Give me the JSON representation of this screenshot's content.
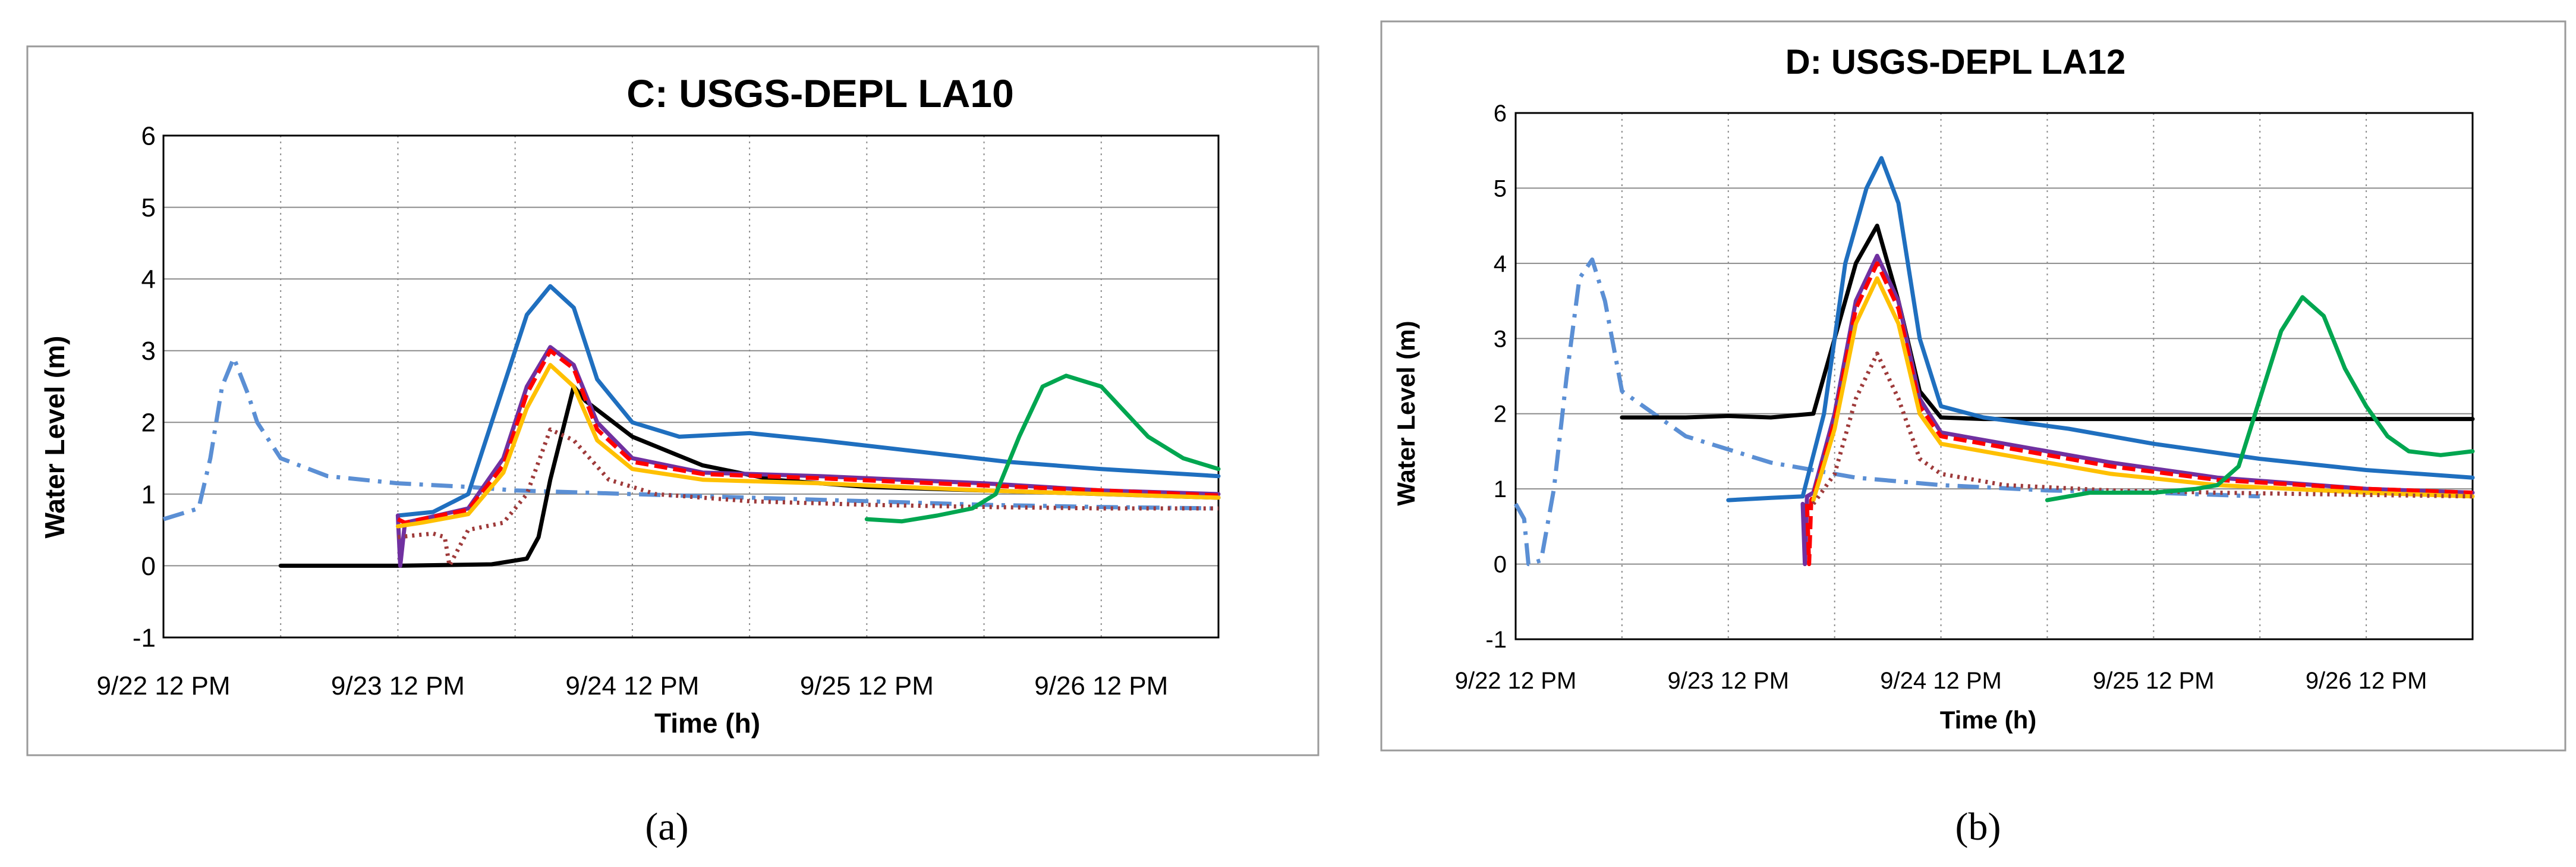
{
  "chart_data": [
    {
      "type": "line",
      "title": "C: USGS-DEPL LA10",
      "xlabel": "Time (h)",
      "ylabel": "Water Level (m)",
      "panel_label": "(a)",
      "xlim": [
        0,
        4.5
      ],
      "ylim": [
        -1,
        6
      ],
      "x_unit": "days since 9/22 12 PM",
      "xtick_labels": [
        "9/22 12 PM",
        "9/23 12 PM",
        "9/24 12 PM",
        "9/25 12 PM",
        "9/26 12 PM"
      ],
      "xtick_values": [
        0,
        1,
        2,
        3,
        4
      ],
      "ytick_values": [
        -1,
        0,
        1,
        2,
        3,
        4,
        5,
        6
      ],
      "series": [
        {
          "name": "light-blue-dashdot",
          "color": "#5b8fd4",
          "dash": "36 14 6 14",
          "x": [
            0.0,
            0.15,
            0.2,
            0.25,
            0.3,
            0.36,
            0.4,
            0.5,
            0.7,
            1.0,
            1.3,
            1.5,
            2.0,
            2.5,
            3.0,
            3.5,
            4.0,
            4.5
          ],
          "y": [
            0.65,
            0.8,
            1.5,
            2.5,
            2.9,
            2.4,
            2.0,
            1.5,
            1.25,
            1.15,
            1.1,
            1.05,
            1.0,
            0.95,
            0.9,
            0.85,
            0.82,
            0.8
          ]
        },
        {
          "name": "black",
          "color": "#000000",
          "dash": "",
          "x": [
            0.5,
            1.0,
            1.4,
            1.55,
            1.6,
            1.65,
            1.75,
            1.8,
            2.0,
            2.3,
            2.6,
            3.0,
            3.5,
            4.0,
            4.5
          ],
          "y": [
            0.0,
            0.0,
            0.02,
            0.1,
            0.4,
            1.2,
            2.5,
            2.3,
            1.8,
            1.4,
            1.2,
            1.1,
            1.05,
            1.0,
            0.95
          ]
        },
        {
          "name": "dark-blue",
          "color": "#1f6fbf",
          "dash": "",
          "x": [
            1.0,
            1.15,
            1.3,
            1.45,
            1.55,
            1.65,
            1.75,
            1.85,
            2.0,
            2.2,
            2.5,
            2.8,
            3.2,
            3.6,
            4.0,
            4.5
          ],
          "y": [
            0.7,
            0.75,
            1.0,
            2.5,
            3.5,
            3.9,
            3.6,
            2.6,
            2.0,
            1.8,
            1.85,
            1.75,
            1.6,
            1.45,
            1.35,
            1.25
          ]
        },
        {
          "name": "purple",
          "color": "#7030a0",
          "dash": "",
          "x": [
            1.0,
            1.01,
            1.03,
            1.1,
            1.3,
            1.45,
            1.55,
            1.65,
            1.75,
            1.85,
            2.0,
            2.3,
            2.8,
            3.5,
            4.0,
            4.5
          ],
          "y": [
            0.7,
            0.0,
            0.6,
            0.65,
            0.8,
            1.5,
            2.5,
            3.05,
            2.8,
            2.0,
            1.5,
            1.3,
            1.25,
            1.15,
            1.05,
            1.0
          ]
        },
        {
          "name": "red-dashed",
          "color": "#ff0000",
          "dash": "22 10",
          "x": [
            1.0,
            1.03,
            1.1,
            1.3,
            1.45,
            1.55,
            1.65,
            1.75,
            1.85,
            2.0,
            2.3,
            2.8,
            3.5,
            4.0,
            4.5
          ],
          "y": [
            0.65,
            0.6,
            0.65,
            0.78,
            1.4,
            2.4,
            3.0,
            2.75,
            1.9,
            1.45,
            1.28,
            1.22,
            1.12,
            1.05,
            0.98
          ]
        },
        {
          "name": "yellow",
          "color": "#ffc000",
          "dash": "",
          "x": [
            1.0,
            1.1,
            1.3,
            1.45,
            1.55,
            1.65,
            1.75,
            1.85,
            2.0,
            2.3,
            2.8,
            3.5,
            4.0,
            4.5
          ],
          "y": [
            0.55,
            0.6,
            0.72,
            1.3,
            2.2,
            2.8,
            2.5,
            1.75,
            1.35,
            1.2,
            1.15,
            1.05,
            1.0,
            0.95
          ]
        },
        {
          "name": "brown-dotted",
          "color": "#9e3a3a",
          "dash": "4 8",
          "x": [
            1.0,
            1.15,
            1.2,
            1.22,
            1.3,
            1.45,
            1.55,
            1.65,
            1.75,
            1.9,
            2.1,
            2.5,
            3.0,
            3.5,
            4.0,
            4.5
          ],
          "y": [
            0.4,
            0.45,
            0.4,
            0.0,
            0.5,
            0.6,
            1.0,
            1.9,
            1.75,
            1.2,
            1.0,
            0.9,
            0.85,
            0.82,
            0.8,
            0.8
          ]
        },
        {
          "name": "green",
          "color": "#00a650",
          "dash": "",
          "x": [
            3.0,
            3.15,
            3.3,
            3.45,
            3.55,
            3.65,
            3.75,
            3.85,
            4.0,
            4.2,
            4.35,
            4.5
          ],
          "y": [
            0.65,
            0.62,
            0.7,
            0.8,
            1.0,
            1.8,
            2.5,
            2.65,
            2.5,
            1.8,
            1.5,
            1.35
          ]
        }
      ]
    },
    {
      "type": "line",
      "title": "D: USGS-DEPL LA12",
      "xlabel": "Time (h)",
      "ylabel": "Water Level (m)",
      "panel_label": "(b)",
      "xlim": [
        0,
        4.5
      ],
      "ylim": [
        -1,
        6
      ],
      "x_unit": "days since 9/22 12 PM",
      "xtick_labels": [
        "9/22 12 PM",
        "9/23 12 PM",
        "9/24 12 PM",
        "9/25 12 PM",
        "9/26 12 PM"
      ],
      "xtick_values": [
        0,
        1,
        2,
        3,
        4
      ],
      "ytick_values": [
        -1,
        0,
        1,
        2,
        3,
        4,
        5,
        6
      ],
      "series": [
        {
          "name": "light-blue-dashdot",
          "color": "#5b8fd4",
          "dash": "36 14 6 14",
          "x": [
            0.0,
            0.04,
            0.06,
            0.12,
            0.18,
            0.24,
            0.3,
            0.36,
            0.42,
            0.5,
            0.8,
            1.2,
            1.6,
            2.0,
            2.5,
            3.0,
            3.5
          ],
          "y": [
            0.8,
            0.6,
            0.0,
            0.05,
            1.0,
            2.5,
            3.8,
            4.05,
            3.5,
            2.3,
            1.7,
            1.35,
            1.15,
            1.05,
            0.98,
            0.95,
            0.9
          ]
        },
        {
          "name": "black",
          "color": "#000000",
          "dash": "",
          "x": [
            0.5,
            0.8,
            1.0,
            1.2,
            1.4,
            1.5,
            1.6,
            1.7,
            1.8,
            1.9,
            2.0,
            2.2,
            2.6,
            3.0,
            3.5,
            4.0,
            4.5
          ],
          "y": [
            1.95,
            1.95,
            1.97,
            1.95,
            2.0,
            3.0,
            4.0,
            4.5,
            3.5,
            2.3,
            1.95,
            1.93,
            1.93,
            1.93,
            1.93,
            1.93,
            1.93
          ]
        },
        {
          "name": "dark-blue",
          "color": "#1f6fbf",
          "dash": "",
          "x": [
            1.0,
            1.2,
            1.35,
            1.45,
            1.55,
            1.65,
            1.72,
            1.8,
            1.9,
            2.0,
            2.2,
            2.6,
            3.0,
            3.5,
            4.0,
            4.5
          ],
          "y": [
            0.85,
            0.88,
            0.9,
            2.0,
            4.0,
            5.0,
            5.4,
            4.8,
            3.0,
            2.1,
            1.95,
            1.8,
            1.6,
            1.4,
            1.25,
            1.15
          ]
        },
        {
          "name": "purple",
          "color": "#7030a0",
          "dash": "",
          "x": [
            1.35,
            1.36,
            1.37,
            1.4,
            1.5,
            1.6,
            1.7,
            1.8,
            1.9,
            2.0,
            2.3,
            2.8,
            3.3,
            4.0,
            4.5
          ],
          "y": [
            0.8,
            0.0,
            0.9,
            0.95,
            2.0,
            3.5,
            4.1,
            3.5,
            2.2,
            1.75,
            1.6,
            1.35,
            1.15,
            1.0,
            0.95
          ]
        },
        {
          "name": "red-dashed",
          "color": "#ff0000",
          "dash": "22 10",
          "x": [
            1.37,
            1.38,
            1.39,
            1.4,
            1.5,
            1.6,
            1.7,
            1.8,
            1.9,
            2.0,
            2.3,
            2.8,
            3.3,
            4.0,
            4.5
          ],
          "y": [
            0.8,
            0.0,
            0.85,
            0.9,
            1.9,
            3.4,
            4.0,
            3.4,
            2.1,
            1.7,
            1.55,
            1.3,
            1.12,
            1.0,
            0.95
          ]
        },
        {
          "name": "yellow",
          "color": "#ffc000",
          "dash": "",
          "x": [
            1.4,
            1.5,
            1.6,
            1.7,
            1.8,
            1.9,
            2.0,
            2.3,
            2.8,
            3.3,
            4.0,
            4.5
          ],
          "y": [
            0.85,
            1.8,
            3.2,
            3.8,
            3.2,
            2.0,
            1.6,
            1.45,
            1.2,
            1.05,
            0.95,
            0.9
          ]
        },
        {
          "name": "brown-dotted",
          "color": "#9e3a3a",
          "dash": "4 8",
          "x": [
            1.4,
            1.5,
            1.6,
            1.7,
            1.8,
            1.9,
            2.0,
            2.3,
            2.8,
            3.3,
            4.0,
            4.5
          ],
          "y": [
            0.8,
            1.2,
            2.2,
            2.8,
            2.2,
            1.4,
            1.2,
            1.05,
            0.98,
            0.95,
            0.92,
            0.9
          ]
        },
        {
          "name": "green",
          "color": "#00a650",
          "dash": "",
          "x": [
            2.5,
            2.7,
            3.0,
            3.2,
            3.3,
            3.4,
            3.5,
            3.6,
            3.7,
            3.8,
            3.9,
            4.0,
            4.1,
            4.2,
            4.35,
            4.5
          ],
          "y": [
            0.85,
            0.95,
            0.95,
            1.0,
            1.05,
            1.3,
            2.2,
            3.1,
            3.55,
            3.3,
            2.6,
            2.1,
            1.7,
            1.5,
            1.45,
            1.5
          ]
        }
      ]
    }
  ]
}
